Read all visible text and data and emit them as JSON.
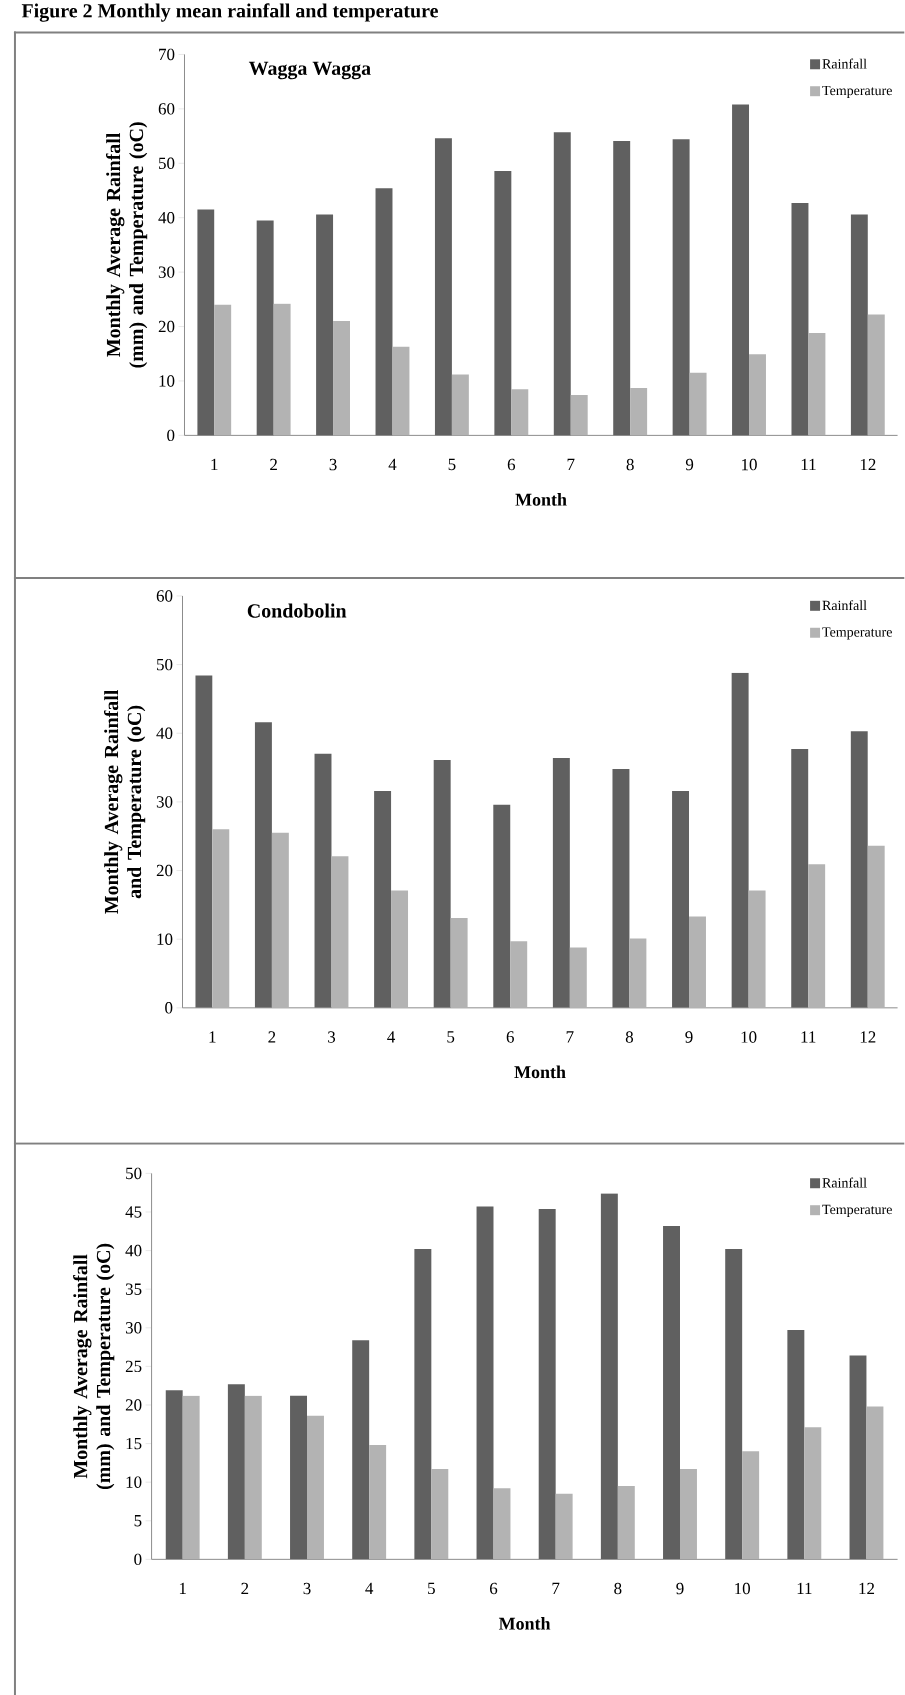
{
  "chart_data": [
    {
      "type": "bar",
      "title": "Figure 2 Monthly mean rainfall and temperature",
      "subtitle": "Wagga Wagga",
      "xlabel": "Month",
      "ylabel": "Monthly Average Rainfall (mm) and Temperature (oC)",
      "categories": [
        "1",
        "2",
        "3",
        "4",
        "5",
        "6",
        "7",
        "8",
        "9",
        "10",
        "11",
        "12"
      ],
      "series": [
        {
          "name": "Rainfall",
          "color": "#606060",
          "values": [
            41.5,
            39.5,
            40.6,
            45.4,
            54.6,
            48.6,
            55.7,
            54.1,
            54.4,
            60.8,
            42.7,
            40.6
          ]
        },
        {
          "name": "Temperature",
          "color": "#b3b3b3",
          "values": [
            24.0,
            24.2,
            21.0,
            16.3,
            11.2,
            8.5,
            7.4,
            8.7,
            11.5,
            14.9,
            18.8,
            22.2
          ]
        }
      ],
      "ylim": [
        0,
        70
      ],
      "yticks": [
        0,
        10,
        20,
        30,
        40,
        50,
        60,
        70
      ],
      "legend": "top right",
      "grid": false
    },
    {
      "type": "bar",
      "subtitle": "Condobolin",
      "xlabel": "Month",
      "ylabel": "Monthly Average Rainfall and Temperature (oC)",
      "categories": [
        "1",
        "2",
        "3",
        "4",
        "5",
        "6",
        "7",
        "8",
        "9",
        "10",
        "11",
        "12"
      ],
      "series": [
        {
          "name": "Rainfall",
          "color": "#606060",
          "values": [
            48.4,
            41.6,
            37.0,
            31.6,
            36.1,
            29.6,
            36.4,
            34.8,
            31.6,
            48.8,
            37.7,
            40.3
          ]
        },
        {
          "name": "Temperature",
          "color": "#b3b3b3",
          "values": [
            26.0,
            25.5,
            22.1,
            17.1,
            13.1,
            9.7,
            8.8,
            10.1,
            13.3,
            17.1,
            20.9,
            23.6
          ]
        }
      ],
      "ylim": [
        0,
        60
      ],
      "yticks": [
        0,
        10,
        20,
        30,
        40,
        50,
        60
      ],
      "legend": "top right",
      "grid": false
    },
    {
      "type": "bar",
      "xlabel": "Month",
      "ylabel": "Monthly Average Rainfall (mm) and Temperature (oC)",
      "categories": [
        "1",
        "2",
        "3",
        "4",
        "5",
        "6",
        "7",
        "8",
        "9",
        "10",
        "11",
        "12"
      ],
      "series": [
        {
          "name": "Rainfall",
          "color": "#606060",
          "values": [
            21.9,
            22.7,
            21.2,
            28.4,
            40.2,
            45.7,
            45.4,
            47.4,
            43.2,
            40.2,
            29.7,
            26.4
          ]
        },
        {
          "name": "Temperature",
          "color": "#b3b3b3",
          "values": [
            21.2,
            21.2,
            18.6,
            14.8,
            11.7,
            9.2,
            8.5,
            9.5,
            11.7,
            14.0,
            17.1,
            19.8
          ]
        }
      ],
      "ylim": [
        0,
        50
      ],
      "yticks": [
        0,
        5,
        10,
        15,
        20,
        25,
        30,
        35,
        40,
        45,
        50
      ],
      "legend": "top right",
      "grid": false
    }
  ]
}
